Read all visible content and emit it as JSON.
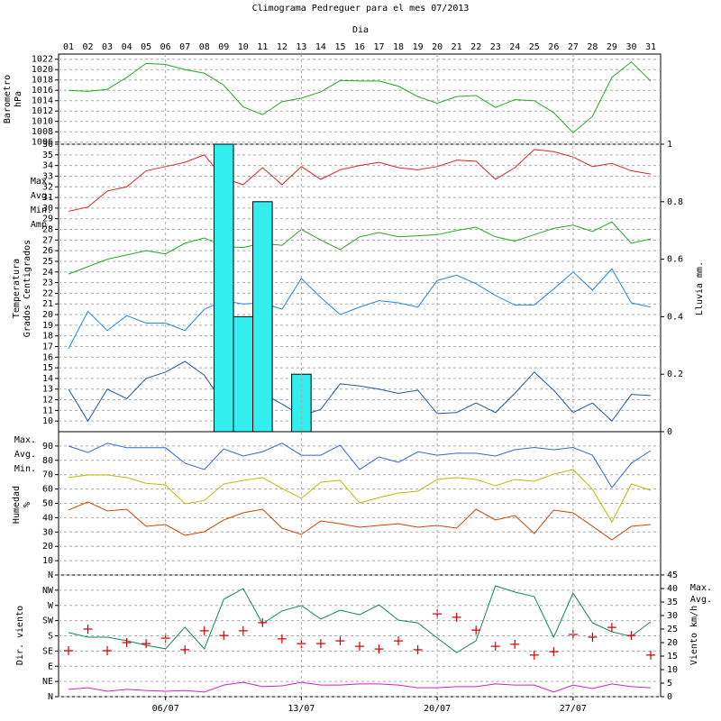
{
  "chart_data": [
    {
      "type": "line",
      "title": "Climograma Pedreguer para el mes 07/2013",
      "x_label": "Dia",
      "categories": [
        "01",
        "02",
        "03",
        "04",
        "05",
        "06",
        "07",
        "08",
        "09",
        "10",
        "11",
        "12",
        "13",
        "14",
        "15",
        "16",
        "17",
        "18",
        "19",
        "20",
        "21",
        "22",
        "23",
        "24",
        "25",
        "26",
        "27",
        "28",
        "29",
        "30",
        "31"
      ],
      "ylabel": [
        "Barometro",
        "hPa"
      ],
      "ylim": [
        1005.6,
        1023
      ],
      "yticks": [
        1006,
        1008,
        1010,
        1012,
        1014,
        1016,
        1018,
        1020,
        1022
      ],
      "grid": true,
      "series": [
        {
          "type": "line",
          "color": "#22aa22",
          "values": [
            1016,
            1015.8,
            1016.2,
            1018.5,
            1021.2,
            1021,
            1020,
            1019.3,
            1017,
            1012.8,
            1011.3,
            1013.8,
            1014.5,
            1015.7,
            1017.9,
            1017.8,
            1017.8,
            1016.8,
            1014.8,
            1013.5,
            1014.8,
            1015,
            1012.7,
            1014.2,
            1014,
            1011.7,
            1007.8,
            1011,
            1018.5,
            1021.5,
            1017.8
          ]
        }
      ]
    },
    {
      "type": "line",
      "ylabel": [
        "Temperatura",
        "Grados Centigrados"
      ],
      "y2label": "Lluvia mm.",
      "ylim": [
        9,
        36
      ],
      "yticks": [
        10,
        11,
        12,
        13,
        14,
        15,
        16,
        17,
        18,
        19,
        20,
        21,
        22,
        23,
        24,
        25,
        26,
        27,
        28,
        29,
        30,
        31,
        32,
        33,
        34,
        35,
        36
      ],
      "grid": true,
      "y2lim": [
        0,
        1
      ],
      "y2ticks": [
        0,
        0.2,
        0.4,
        0.6,
        0.8,
        1
      ],
      "series": [
        {
          "type": "line",
          "name": "Max.",
          "color": "#dd2222",
          "values": [
            29.7,
            30.1,
            31.6,
            32,
            33.5,
            33.9,
            34.3,
            35,
            32.8,
            32.2,
            33.8,
            32.2,
            33.9,
            32.7,
            33.6,
            34,
            34.3,
            33.8,
            33.6,
            33.9,
            34.5,
            34.4,
            32.7,
            33.8,
            35.5,
            35.3,
            34.8,
            33.9,
            34.2,
            33.5,
            33.2
          ]
        },
        {
          "type": "line",
          "name": "Avg.",
          "color": "#22aa22",
          "values": [
            23.8,
            24.5,
            25.2,
            25.6,
            26,
            25.7,
            26.7,
            27.2,
            26.4,
            26.3,
            26.7,
            26.5,
            28,
            27,
            26.1,
            27.3,
            27.7,
            27.3,
            27.4,
            27.5,
            27.9,
            28.2,
            27.3,
            26.9,
            27.5,
            28.1,
            28.4,
            27.8,
            28.7,
            26.7,
            27.1
          ]
        },
        {
          "type": "line",
          "name": "Min.",
          "color": "#2288dd",
          "values": [
            16.8,
            20.3,
            18.5,
            19.9,
            19.2,
            19.2,
            18.5,
            20.5,
            21.3,
            21,
            21.1,
            20.5,
            23.4,
            21.6,
            20,
            20.7,
            21.3,
            21.1,
            20.7,
            23.2,
            23.7,
            22.9,
            21.8,
            20.9,
            20.9,
            22.4,
            24,
            22.3,
            24.3,
            21.1,
            20.7
          ]
        },
        {
          "type": "line",
          "name": "Amp.",
          "color": "#225599",
          "values": [
            13,
            10,
            13,
            12.1,
            14,
            14.6,
            15.6,
            14.3,
            11.6,
            11,
            12.6,
            11.6,
            10.5,
            11.1,
            13.5,
            13.3,
            13,
            12.6,
            12.9,
            10.7,
            10.8,
            11.7,
            10.8,
            12.6,
            14.6,
            12.9,
            10.8,
            11.7,
            10,
            12.5,
            12.4
          ]
        },
        {
          "type": "bar",
          "axis": "y2",
          "color": "#33eeee",
          "values": [
            0,
            0,
            0,
            0,
            0,
            0,
            0,
            0,
            1,
            0.4,
            0.8,
            0,
            0.2,
            0,
            0,
            0,
            0,
            0,
            0,
            0,
            0,
            0,
            0,
            0,
            0,
            0,
            0,
            0,
            0,
            0,
            0
          ]
        }
      ]
    },
    {
      "type": "line",
      "ylabel": [
        "Humedad",
        "%"
      ],
      "ylim": [
        0,
        100
      ],
      "yticks": [
        10,
        20,
        30,
        40,
        50,
        60,
        70,
        80,
        90
      ],
      "grid": true,
      "series": [
        {
          "type": "line",
          "name": "Max.",
          "color": "#3366cc",
          "values": [
            90,
            85.5,
            92,
            88.8,
            88.8,
            88.8,
            78,
            73.6,
            88,
            83,
            86,
            92,
            83.6,
            83.6,
            90.6,
            73.6,
            82.4,
            78.6,
            86,
            83.6,
            85,
            85,
            83,
            87.4,
            89,
            87.4,
            89,
            83.6,
            61,
            78,
            86.8
          ]
        },
        {
          "type": "line",
          "name": "Avg.",
          "color": "#bbbb00",
          "values": [
            68,
            69.8,
            69.8,
            68,
            64,
            62.9,
            49.7,
            52,
            63.5,
            66,
            68,
            60.4,
            53.5,
            64.8,
            66,
            50.3,
            54,
            57.2,
            58.5,
            66.7,
            68,
            66.7,
            62.3,
            66.7,
            65.4,
            70.4,
            73.6,
            59.7,
            37,
            63.5,
            59.1
          ]
        },
        {
          "type": "line",
          "name": "Min.",
          "color": "#cc4400",
          "values": [
            45.3,
            51,
            44.7,
            45.9,
            34,
            35.2,
            27.7,
            30.2,
            38.4,
            43.4,
            45.9,
            32.7,
            28.3,
            37.7,
            35.8,
            33.3,
            34.6,
            35.8,
            33.3,
            34.6,
            32.7,
            45.9,
            38.4,
            41.5,
            28.9,
            45.3,
            43.4,
            34,
            24.5,
            34,
            35.2
          ]
        }
      ]
    },
    {
      "type": "line",
      "ylabel": [
        "Dir. viento"
      ],
      "y2label": "Viento km/h",
      "categories": [
        null,
        null,
        null,
        null,
        null,
        "06/07",
        null,
        null,
        null,
        null,
        null,
        null,
        "13/07",
        null,
        null,
        null,
        null,
        null,
        null,
        "20/07",
        null,
        null,
        null,
        null,
        null,
        null,
        "27/07",
        null,
        null,
        null,
        null
      ],
      "ylim": [
        0,
        360
      ],
      "yticks": [
        {
          "value": 0,
          "label": "N"
        },
        {
          "value": 45,
          "label": "NE"
        },
        {
          "value": 90,
          "label": "E"
        },
        {
          "value": 135,
          "label": "SE"
        },
        {
          "value": 180,
          "label": "S"
        },
        {
          "value": 225,
          "label": "SW"
        },
        {
          "value": 270,
          "label": "W"
        },
        {
          "value": 315,
          "label": "NW"
        },
        {
          "value": 360,
          "label": "N"
        }
      ],
      "grid": true,
      "y2lim": [
        0,
        45
      ],
      "y2ticks": [
        0,
        5,
        10,
        15,
        20,
        25,
        30,
        35,
        40,
        45
      ],
      "series": [
        {
          "type": "line",
          "name": "Max.",
          "axis": "y2",
          "color": "#118855",
          "values": [
            23.7,
            22,
            22,
            20.7,
            19,
            17.7,
            25.7,
            17.7,
            36,
            40,
            27,
            31.7,
            33.7,
            28.7,
            32,
            30.3,
            34,
            28.3,
            27.3,
            21.7,
            16.3,
            20.7,
            41,
            38.7,
            37,
            22,
            38.3,
            27.3,
            24,
            22.3,
            27.7
          ]
        },
        {
          "type": "line",
          "name": "Avg.",
          "axis": "y2",
          "color": "#cc22cc",
          "values": [
            2.7,
            3.3,
            2,
            2.7,
            2.3,
            2,
            2.3,
            1.7,
            4.3,
            5.3,
            3.7,
            4,
            5.3,
            4.3,
            4.3,
            4.7,
            4.7,
            4.3,
            3.3,
            3.3,
            3.7,
            3.7,
            4.7,
            4.3,
            4.3,
            1.7,
            4.3,
            3,
            4.7,
            3.7,
            3.3
          ]
        },
        {
          "type": "scatter",
          "color": "#dd0000",
          "values": [
            136,
            200,
            136,
            160,
            157,
            173,
            139,
            195,
            181,
            195,
            219,
            171,
            157,
            157,
            165,
            149,
            141,
            165,
            139,
            245,
            235,
            197,
            149,
            155,
            123,
            133,
            184,
            176,
            205,
            181,
            123
          ]
        }
      ]
    }
  ]
}
